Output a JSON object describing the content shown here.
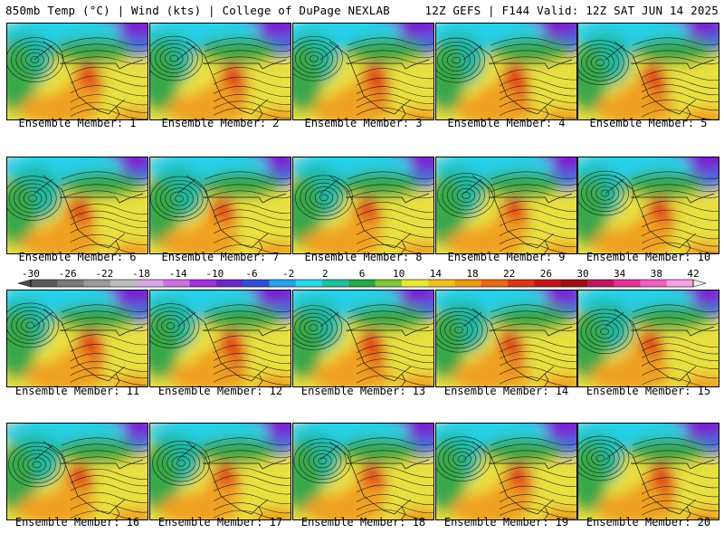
{
  "header": {
    "left": "850mb Temp (°C) | Wind (kts) | College of DuPage NEXLAB",
    "right": "12Z GEFS | F144 Valid: 12Z SAT JUN 14 2025"
  },
  "members": [
    "Ensemble Member: 1",
    "Ensemble Member: 2",
    "Ensemble Member: 3",
    "Ensemble Member: 4",
    "Ensemble Member: 5",
    "Ensemble Member: 6",
    "Ensemble Member: 7",
    "Ensemble Member: 8",
    "Ensemble Member: 9",
    "Ensemble Member: 10",
    "Ensemble Member: 11",
    "Ensemble Member: 12",
    "Ensemble Member: 13",
    "Ensemble Member: 14",
    "Ensemble Member: 15",
    "Ensemble Member: 16",
    "Ensemble Member: 17",
    "Ensemble Member: 18",
    "Ensemble Member: 19",
    "Ensemble Member: 20"
  ],
  "colorbar": {
    "ticks": [
      "-30",
      "-26",
      "-22",
      "-18",
      "-14",
      "-10",
      "-6",
      "-2",
      "2",
      "6",
      "10",
      "14",
      "18",
      "22",
      "26",
      "30",
      "34",
      "38",
      "42"
    ],
    "colors": [
      "#5a5a5a",
      "#7a7a7a",
      "#9a9a9a",
      "#bdbdbd",
      "#d8a8e8",
      "#d070e0",
      "#a030d8",
      "#6a28c8",
      "#3050d8",
      "#2aa0e8",
      "#28d8e8",
      "#20c0a0",
      "#28a848",
      "#7ec83a",
      "#e8e83a",
      "#f0c020",
      "#f09818",
      "#e86818",
      "#d83818",
      "#c01818",
      "#a01010",
      "#c01860",
      "#e03090",
      "#f060c0",
      "#f8a0e0"
    ]
  },
  "palette": {
    "purple": "#7a1fd0",
    "blue": "#3a6ae0",
    "cyan": "#28d0e8",
    "teal": "#20b8a0",
    "green": "#38a848",
    "yellow": "#e8e040",
    "orange": "#f0a020",
    "red": "#e03818",
    "coast": "#1a1a1a",
    "contour": "#101010"
  }
}
